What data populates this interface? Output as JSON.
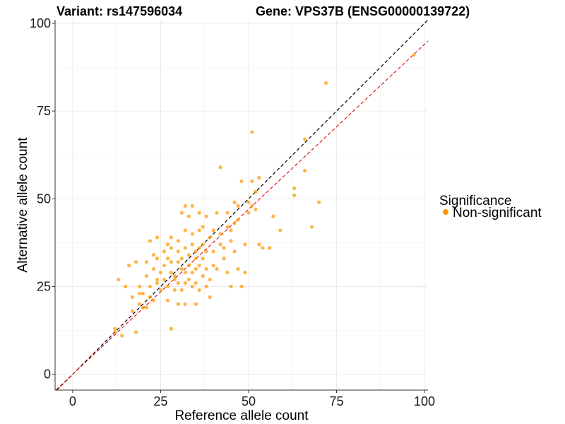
{
  "chart_data": {
    "type": "scatter",
    "title_variant": "Variant: rs147596034",
    "title_gene": "Gene: VPS37B (ENSG00000139722)",
    "xlabel": "Reference allele count",
    "ylabel": "Alternative allele count",
    "xlim": [
      -5,
      101
    ],
    "ylim": [
      -4.5,
      101
    ],
    "xticks": [
      0,
      25,
      50,
      75,
      100
    ],
    "yticks": [
      0,
      25,
      50,
      75,
      100
    ],
    "grid": true,
    "legend": {
      "title": "Significance",
      "entries": [
        {
          "label": "Non-significant",
          "color": "#FF9900"
        }
      ],
      "position": "right"
    },
    "colors": {
      "point": "#FF9900",
      "identity_line": "#000000",
      "fit_line": "#E41A1C",
      "grid": "#EBEBEB"
    },
    "reference_lines": [
      {
        "name": "identity",
        "slope": 1.0,
        "intercept": 0,
        "style": "dashed",
        "color": "#000000"
      },
      {
        "name": "fit",
        "slope": 0.94,
        "intercept": 0,
        "style": "dashed",
        "color": "#E41A1C"
      }
    ],
    "series": [
      {
        "name": "Non-significant",
        "points": [
          [
            12,
            12
          ],
          [
            12,
            13
          ],
          [
            13,
            27
          ],
          [
            14,
            11
          ],
          [
            15,
            25
          ],
          [
            16,
            31
          ],
          [
            17,
            18
          ],
          [
            17,
            22
          ],
          [
            18,
            12
          ],
          [
            18,
            32
          ],
          [
            19,
            20
          ],
          [
            19,
            23
          ],
          [
            19,
            25
          ],
          [
            20,
            19
          ],
          [
            20,
            23
          ],
          [
            21,
            19
          ],
          [
            21,
            28
          ],
          [
            21,
            32
          ],
          [
            22,
            38
          ],
          [
            22,
            25
          ],
          [
            22,
            22
          ],
          [
            23,
            21
          ],
          [
            23,
            30
          ],
          [
            23,
            34
          ],
          [
            24,
            26
          ],
          [
            24,
            33
          ],
          [
            24,
            39
          ],
          [
            24,
            27
          ],
          [
            25,
            24
          ],
          [
            25,
            29
          ],
          [
            26,
            27
          ],
          [
            26,
            35
          ],
          [
            26,
            31
          ],
          [
            27,
            21
          ],
          [
            27,
            25
          ],
          [
            27,
            33
          ],
          [
            27,
            37
          ],
          [
            28,
            13
          ],
          [
            28,
            29
          ],
          [
            28,
            32
          ],
          [
            28,
            36
          ],
          [
            28,
            39
          ],
          [
            29,
            24
          ],
          [
            29,
            27
          ],
          [
            29,
            28
          ],
          [
            30,
            26
          ],
          [
            30,
            32
          ],
          [
            30,
            35
          ],
          [
            30,
            38
          ],
          [
            30,
            20
          ],
          [
            31,
            24
          ],
          [
            31,
            30
          ],
          [
            31,
            33
          ],
          [
            31,
            46
          ],
          [
            32,
            20
          ],
          [
            32,
            26
          ],
          [
            32,
            29
          ],
          [
            32,
            36
          ],
          [
            32,
            41
          ],
          [
            32,
            48
          ],
          [
            33,
            27
          ],
          [
            33,
            31
          ],
          [
            33,
            34
          ],
          [
            33,
            45
          ],
          [
            34,
            25
          ],
          [
            34,
            29
          ],
          [
            34,
            37
          ],
          [
            34,
            48
          ],
          [
            34,
            40
          ],
          [
            35,
            26
          ],
          [
            35,
            30
          ],
          [
            35,
            33
          ],
          [
            35,
            35
          ],
          [
            35,
            20
          ],
          [
            36,
            24
          ],
          [
            36,
            31
          ],
          [
            36,
            36
          ],
          [
            36,
            41
          ],
          [
            36,
            46
          ],
          [
            37,
            28
          ],
          [
            37,
            33
          ],
          [
            37,
            37
          ],
          [
            37,
            42
          ],
          [
            38,
            25
          ],
          [
            38,
            30
          ],
          [
            38,
            35
          ],
          [
            38,
            45
          ],
          [
            39,
            39
          ],
          [
            39,
            22
          ],
          [
            39,
            27
          ],
          [
            40,
            35
          ],
          [
            40,
            41
          ],
          [
            40,
            31
          ],
          [
            41,
            30
          ],
          [
            41,
            46
          ],
          [
            42,
            40
          ],
          [
            42,
            59
          ],
          [
            42,
            37
          ],
          [
            43,
            33
          ],
          [
            43,
            36
          ],
          [
            44,
            42
          ],
          [
            44,
            46
          ],
          [
            44,
            29
          ],
          [
            45,
            38
          ],
          [
            45,
            41
          ],
          [
            45,
            25
          ],
          [
            46,
            43
          ],
          [
            46,
            49
          ],
          [
            46,
            35
          ],
          [
            47,
            30
          ],
          [
            47,
            44
          ],
          [
            47,
            48
          ],
          [
            48,
            25
          ],
          [
            48,
            55
          ],
          [
            49,
            29
          ],
          [
            49,
            37
          ],
          [
            50,
            46
          ],
          [
            50,
            49
          ],
          [
            51,
            55
          ],
          [
            51,
            69
          ],
          [
            51,
            48
          ],
          [
            52,
            52
          ],
          [
            52,
            47
          ],
          [
            53,
            56
          ],
          [
            53,
            37
          ],
          [
            54,
            36
          ],
          [
            56,
            36
          ],
          [
            57,
            45
          ],
          [
            59,
            41
          ],
          [
            63,
            51
          ],
          [
            63,
            53
          ],
          [
            66,
            58
          ],
          [
            66,
            67
          ],
          [
            68,
            42
          ],
          [
            70,
            49
          ],
          [
            72,
            83
          ],
          [
            97,
            91
          ]
        ]
      }
    ]
  }
}
